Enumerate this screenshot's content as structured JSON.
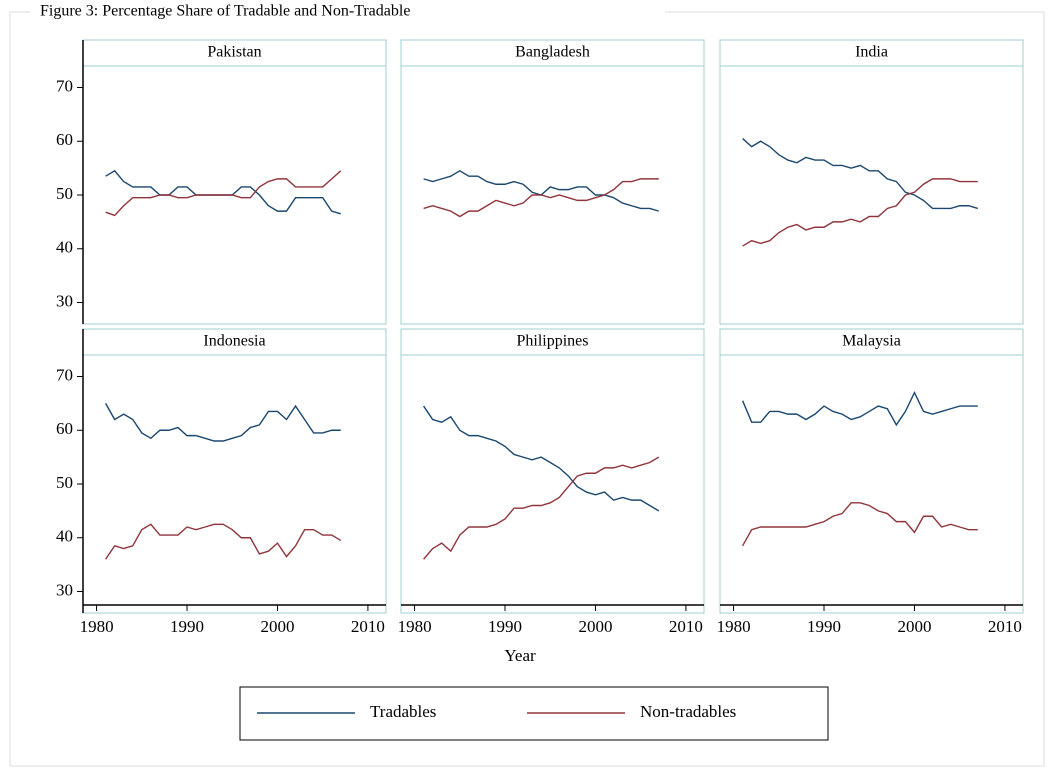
{
  "title": "Figure 3: Percentage Share of Tradable and Non-Tradable",
  "x_label": "Year",
  "chart_data": [
    {
      "type": "line",
      "title": "Pakistan",
      "x": [
        1981,
        1982,
        1983,
        1984,
        1985,
        1986,
        1987,
        1988,
        1989,
        1990,
        1991,
        1992,
        1993,
        1994,
        1995,
        1996,
        1997,
        1998,
        1999,
        2000,
        2001,
        2002,
        2003,
        2004,
        2005,
        2006,
        2007
      ],
      "series": [
        {
          "name": "Tradables",
          "color": "#1a476f",
          "values": [
            53.5,
            54.5,
            52.5,
            51.5,
            51.5,
            51.5,
            50,
            50,
            51.5,
            51.5,
            50,
            50,
            50,
            50,
            50,
            51.5,
            51.5,
            50,
            48,
            47,
            47,
            49.5,
            49.5,
            49.5,
            49.5,
            47,
            46.5
          ]
        },
        {
          "name": "Non-tradables",
          "color": "#90353b",
          "values": [
            46.8,
            46.2,
            48,
            49.5,
            49.5,
            49.5,
            50,
            50,
            49.5,
            49.5,
            50,
            50,
            50,
            50,
            50,
            49.5,
            49.5,
            51.5,
            52.5,
            53,
            53,
            51.5,
            51.5,
            51.5,
            51.5,
            53,
            54.5
          ]
        }
      ],
      "xlim": [
        1978.5,
        2012
      ],
      "ylim": [
        26,
        74
      ],
      "yticks": [
        30,
        40,
        50,
        60,
        70
      ]
    },
    {
      "type": "line",
      "title": "Bangladesh",
      "x": [
        1981,
        1982,
        1983,
        1984,
        1985,
        1986,
        1987,
        1988,
        1989,
        1990,
        1991,
        1992,
        1993,
        1994,
        1995,
        1996,
        1997,
        1998,
        1999,
        2000,
        2001,
        2002,
        2003,
        2004,
        2005,
        2006,
        2007
      ],
      "series": [
        {
          "name": "Tradables",
          "color": "#1a476f",
          "values": [
            53,
            52.5,
            53,
            53.5,
            54.5,
            53.5,
            53.5,
            52.5,
            52,
            52,
            52.5,
            52,
            50.5,
            50,
            51.5,
            51,
            51,
            51.5,
            51.5,
            50,
            50,
            49.5,
            48.5,
            48,
            47.5,
            47.5,
            47
          ]
        },
        {
          "name": "Non-tradables",
          "color": "#90353b",
          "values": [
            47.5,
            48,
            47.5,
            47,
            46,
            47,
            47,
            48,
            49,
            48.5,
            48,
            48.5,
            50,
            50,
            49.5,
            50,
            49.5,
            49,
            49,
            49.5,
            50,
            51,
            52.5,
            52.5,
            53,
            53,
            53
          ]
        }
      ],
      "xlim": [
        1978.5,
        2012
      ],
      "ylim": [
        26,
        74
      ]
    },
    {
      "type": "line",
      "title": "India",
      "x": [
        1981,
        1982,
        1983,
        1984,
        1985,
        1986,
        1987,
        1988,
        1989,
        1990,
        1991,
        1992,
        1993,
        1994,
        1995,
        1996,
        1997,
        1998,
        1999,
        2000,
        2001,
        2002,
        2003,
        2004,
        2005,
        2006,
        2007
      ],
      "series": [
        {
          "name": "Tradables",
          "color": "#1a476f",
          "values": [
            60.5,
            59,
            60,
            59,
            57.5,
            56.5,
            56,
            57,
            56.5,
            56.5,
            55.5,
            55.5,
            55,
            55.5,
            54.5,
            54.5,
            53,
            52.5,
            50.5,
            50,
            49,
            47.5,
            47.5,
            47.5,
            48,
            48,
            47.5
          ]
        },
        {
          "name": "Non-tradables",
          "color": "#90353b",
          "values": [
            40.5,
            41.5,
            41,
            41.5,
            43,
            44,
            44.5,
            43.5,
            44,
            44,
            45,
            45,
            45.5,
            45,
            46,
            46,
            47.5,
            48,
            50,
            50.5,
            52,
            53,
            53,
            53,
            52.5,
            52.5,
            52.5
          ]
        }
      ],
      "xlim": [
        1978.5,
        2012
      ],
      "ylim": [
        26,
        74
      ]
    },
    {
      "type": "line",
      "title": "Indonesia",
      "x": [
        1981,
        1982,
        1983,
        1984,
        1985,
        1986,
        1987,
        1988,
        1989,
        1990,
        1991,
        1992,
        1993,
        1994,
        1995,
        1996,
        1997,
        1998,
        1999,
        2000,
        2001,
        2002,
        2003,
        2004,
        2005,
        2006,
        2007
      ],
      "series": [
        {
          "name": "Tradables",
          "color": "#1a476f",
          "values": [
            65,
            62,
            63,
            62,
            59.5,
            58.5,
            60,
            60,
            60.5,
            59,
            59,
            58.5,
            58,
            58,
            58.5,
            59,
            60.5,
            61,
            63.5,
            63.5,
            62,
            64.5,
            62,
            59.5,
            59.5,
            60,
            60
          ]
        },
        {
          "name": "Non-tradables",
          "color": "#90353b",
          "values": [
            36,
            38.5,
            38,
            38.5,
            41.5,
            42.5,
            40.5,
            40.5,
            40.5,
            42,
            41.5,
            42,
            42.5,
            42.5,
            41.5,
            40,
            40,
            37,
            37.5,
            39,
            36.5,
            38.5,
            41.5,
            41.5,
            40.5,
            40.5,
            39.5
          ]
        }
      ],
      "xlim": [
        1978.5,
        2012
      ],
      "ylim": [
        26,
        74
      ],
      "xticks": [
        1980,
        1990,
        2000,
        2010
      ],
      "yticks": [
        30,
        40,
        50,
        60,
        70
      ]
    },
    {
      "type": "line",
      "title": "Philippines",
      "x": [
        1981,
        1982,
        1983,
        1984,
        1985,
        1986,
        1987,
        1988,
        1989,
        1990,
        1991,
        1992,
        1993,
        1994,
        1995,
        1996,
        1997,
        1998,
        1999,
        2000,
        2001,
        2002,
        2003,
        2004,
        2005,
        2006,
        2007
      ],
      "series": [
        {
          "name": "Tradables",
          "color": "#1a476f",
          "values": [
            64.5,
            62,
            61.5,
            62.5,
            60,
            59,
            59,
            58.5,
            58,
            57,
            55.5,
            55,
            54.5,
            55,
            54,
            53,
            51.5,
            49.5,
            48.5,
            48,
            48.5,
            47,
            47.5,
            47,
            47,
            46,
            45
          ]
        },
        {
          "name": "Non-tradables",
          "color": "#90353b",
          "values": [
            36,
            38,
            39,
            37.5,
            40.5,
            42,
            42,
            42,
            42.5,
            43.5,
            45.5,
            45.5,
            46,
            46,
            46.5,
            47.5,
            49.5,
            51.5,
            52,
            52,
            53,
            53,
            53.5,
            53,
            53.5,
            54,
            55
          ]
        }
      ],
      "xlim": [
        1978.5,
        2012
      ],
      "ylim": [
        26,
        74
      ],
      "xticks": [
        1980,
        1990,
        2000,
        2010
      ]
    },
    {
      "type": "line",
      "title": "Malaysia",
      "x": [
        1981,
        1982,
        1983,
        1984,
        1985,
        1986,
        1987,
        1988,
        1989,
        1990,
        1991,
        1992,
        1993,
        1994,
        1995,
        1996,
        1997,
        1998,
        1999,
        2000,
        2001,
        2002,
        2003,
        2004,
        2005,
        2006,
        2007
      ],
      "series": [
        {
          "name": "Tradables",
          "color": "#1a476f",
          "values": [
            65.5,
            61.5,
            61.5,
            63.5,
            63.5,
            63,
            63,
            62,
            63,
            64.5,
            63.5,
            63,
            62,
            62.5,
            63.5,
            64.5,
            64,
            61,
            63.5,
            67,
            63.5,
            63,
            63.5,
            64,
            64.5,
            64.5,
            64.5
          ]
        },
        {
          "name": "Non-tradables",
          "color": "#90353b",
          "values": [
            38.5,
            41.5,
            42,
            42,
            42,
            42,
            42,
            42,
            42.5,
            43,
            44,
            44.5,
            46.5,
            46.5,
            46,
            45,
            44.5,
            43,
            43,
            41,
            44,
            44,
            42,
            42.5,
            42,
            41.5,
            41.5
          ]
        }
      ],
      "xlim": [
        1978.5,
        2012
      ],
      "ylim": [
        26,
        74
      ],
      "xticks": [
        1980,
        1990,
        2000,
        2010
      ]
    }
  ]
}
